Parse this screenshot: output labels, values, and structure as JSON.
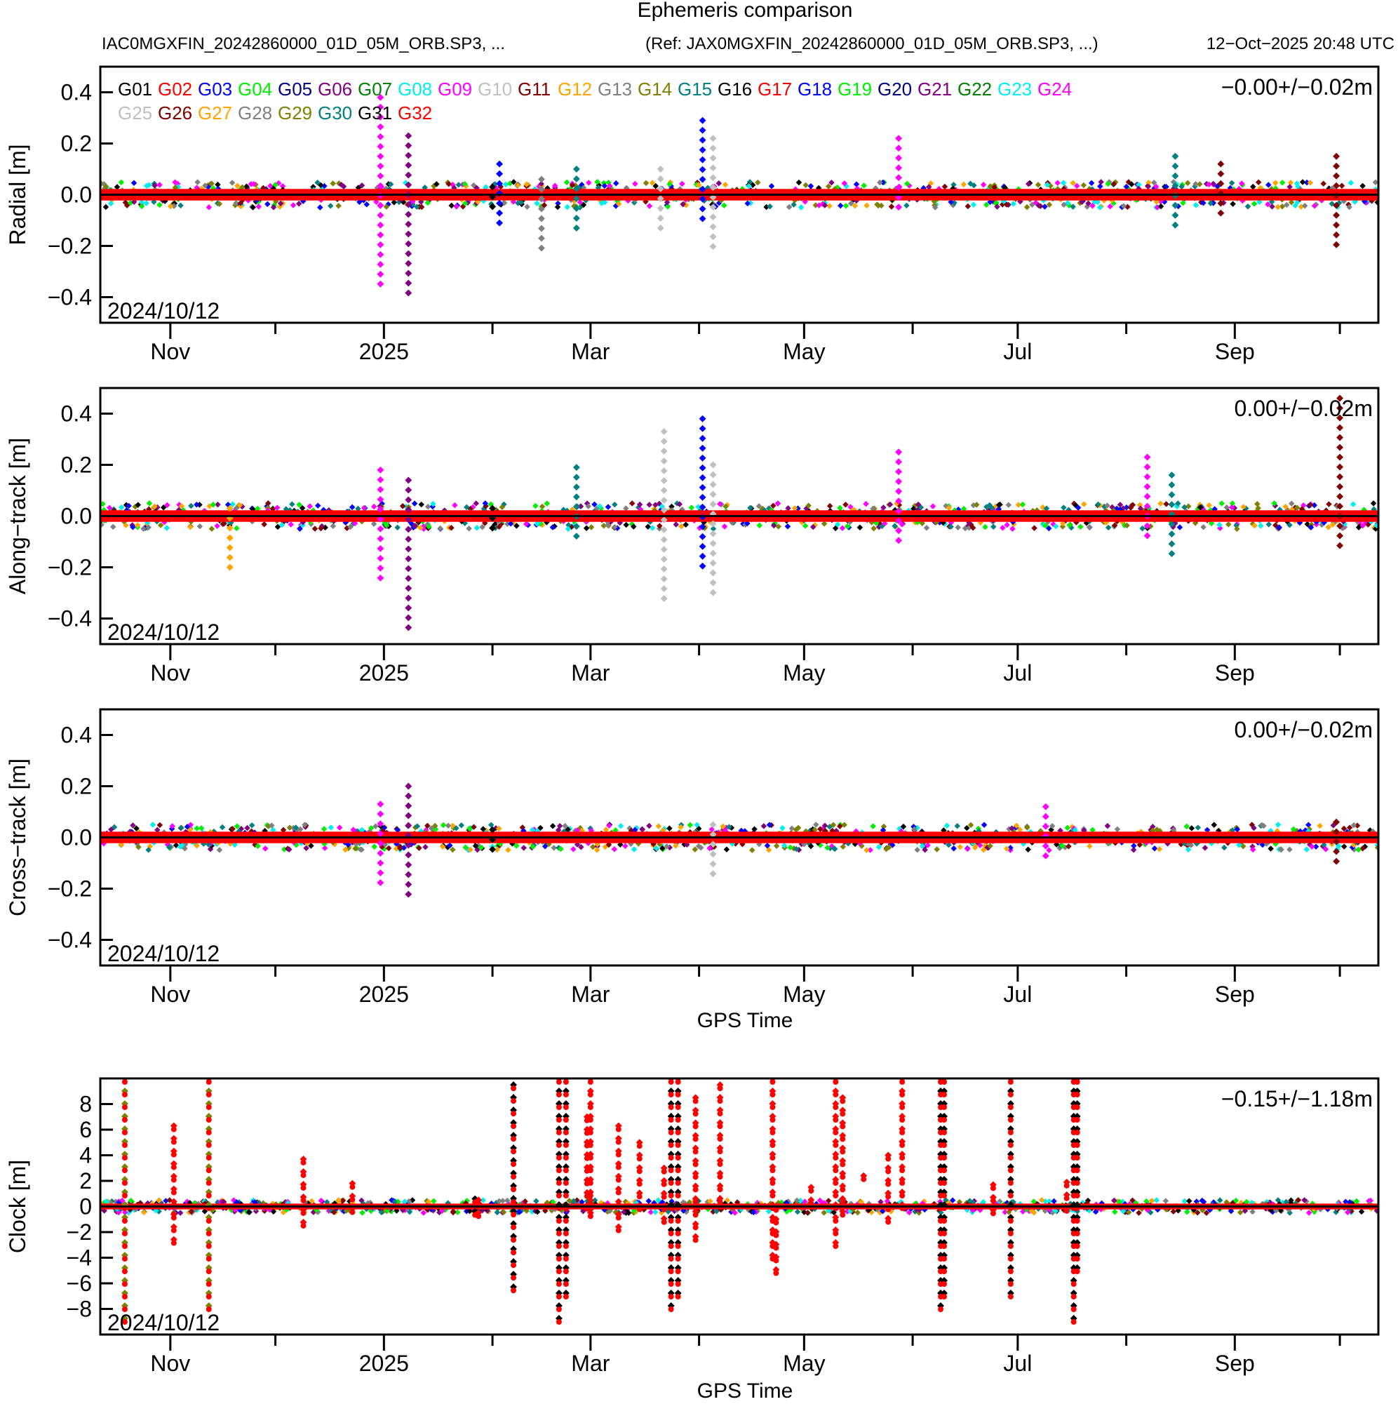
{
  "chart_data": {
    "type": "scatter",
    "title": "Ephemeris comparison",
    "subtitle_left": "IAC0MGXFIN_20242860000_01D_05M_ORB.SP3, ...",
    "subtitle_ref": "(Ref: JAX0MGXFIN_20242860000_01D_05M_ORB.SP3, ...)",
    "subtitle_time": "12−Oct−2025 20:48 UTC",
    "x_range_days": [
      0,
      365
    ],
    "x_start_date": "2024/10/12",
    "x_ticks": [
      {
        "label": "Nov",
        "day": 20
      },
      {
        "label": "",
        "day": 50
      },
      {
        "label": "2025",
        "day": 81
      },
      {
        "label": "",
        "day": 112
      },
      {
        "label": "Mar",
        "day": 140
      },
      {
        "label": "",
        "day": 171
      },
      {
        "label": "May",
        "day": 201
      },
      {
        "label": "",
        "day": 232
      },
      {
        "label": "Jul",
        "day": 262
      },
      {
        "label": "",
        "day": 293
      },
      {
        "label": "Sep",
        "day": 324
      },
      {
        "label": "",
        "day": 354
      }
    ],
    "xlabel": "GPS Time",
    "legend": {
      "placement": "top-left",
      "entries": [
        {
          "name": "G01",
          "color": "#000000"
        },
        {
          "name": "G02",
          "color": "#ff0000"
        },
        {
          "name": "G03",
          "color": "#0000ff"
        },
        {
          "name": "G04",
          "color": "#00ee00"
        },
        {
          "name": "G05",
          "color": "#000080"
        },
        {
          "name": "G06",
          "color": "#800080"
        },
        {
          "name": "G07",
          "color": "#008000"
        },
        {
          "name": "G08",
          "color": "#00eeee"
        },
        {
          "name": "G09",
          "color": "#ff00ff"
        },
        {
          "name": "G10",
          "color": "#c0c0c0"
        },
        {
          "name": "G11",
          "color": "#800000"
        },
        {
          "name": "G12",
          "color": "#ffa500"
        },
        {
          "name": "G13",
          "color": "#808080"
        },
        {
          "name": "G14",
          "color": "#808000"
        },
        {
          "name": "G15",
          "color": "#008080"
        },
        {
          "name": "G16",
          "color": "#000000"
        },
        {
          "name": "G17",
          "color": "#ff0000"
        },
        {
          "name": "G18",
          "color": "#0000ff"
        },
        {
          "name": "G19",
          "color": "#00ee00"
        },
        {
          "name": "G20",
          "color": "#000080"
        },
        {
          "name": "G21",
          "color": "#800080"
        },
        {
          "name": "G22",
          "color": "#008000"
        },
        {
          "name": "G23",
          "color": "#00eeee"
        },
        {
          "name": "G24",
          "color": "#ff00ff"
        },
        {
          "name": "G25",
          "color": "#c0c0c0"
        },
        {
          "name": "G26",
          "color": "#800000"
        },
        {
          "name": "G27",
          "color": "#ffa500"
        },
        {
          "name": "G28",
          "color": "#808080"
        },
        {
          "name": "G29",
          "color": "#808000"
        },
        {
          "name": "G30",
          "color": "#008080"
        },
        {
          "name": "G31",
          "color": "#000000"
        },
        {
          "name": "G32",
          "color": "#ff0000"
        }
      ]
    },
    "panels": [
      {
        "id": "radial",
        "ylabel": "Radial [m]",
        "ylim": [
          -0.5,
          0.5
        ],
        "yticks": [
          "0.4",
          "0.2",
          "0.0",
          "−0.2",
          "−0.4"
        ],
        "ytick_values": [
          0.4,
          0.2,
          0.0,
          -0.2,
          -0.4
        ],
        "stats": "−0.00+/−0.02m",
        "band": 0.05,
        "spikes": [
          {
            "day": 80,
            "min": -0.37,
            "max": 0.38,
            "color": "#ff00ff"
          },
          {
            "day": 88,
            "min": -0.4,
            "max": 0.23,
            "color": "#800080"
          },
          {
            "day": 112,
            "min": -0.05,
            "max": 0.03,
            "color": "#000000"
          },
          {
            "day": 114,
            "min": -0.14,
            "max": 0.12,
            "color": "#0000ff"
          },
          {
            "day": 126,
            "min": -0.22,
            "max": 0.06,
            "color": "#808080"
          },
          {
            "day": 136,
            "min": -0.16,
            "max": 0.1,
            "color": "#008080"
          },
          {
            "day": 160,
            "min": -0.14,
            "max": 0.1,
            "color": "#c0c0c0"
          },
          {
            "day": 172,
            "min": -0.1,
            "max": 0.29,
            "color": "#0000ff"
          },
          {
            "day": 175,
            "min": -0.23,
            "max": 0.22,
            "color": "#c0c0c0"
          },
          {
            "day": 228,
            "min": -0.08,
            "max": 0.22,
            "color": "#ff00ff"
          },
          {
            "day": 307,
            "min": -0.12,
            "max": 0.15,
            "color": "#008080"
          },
          {
            "day": 320,
            "min": -0.1,
            "max": 0.12,
            "color": "#800000"
          },
          {
            "day": 353,
            "min": -0.2,
            "max": 0.15,
            "color": "#800000"
          }
        ]
      },
      {
        "id": "along-track",
        "ylabel": "Along−track [m]",
        "ylim": [
          -0.5,
          0.5
        ],
        "yticks": [
          "0.4",
          "0.2",
          "0.0",
          "−0.2",
          "−0.4"
        ],
        "ytick_values": [
          0.4,
          0.2,
          0.0,
          -0.2,
          -0.4
        ],
        "stats": "0.00+/−0.02m",
        "band": 0.05,
        "spikes": [
          {
            "day": 37,
            "min": -0.22,
            "max": 0.03,
            "color": "#ffa500"
          },
          {
            "day": 80,
            "min": -0.26,
            "max": 0.18,
            "color": "#ff00ff"
          },
          {
            "day": 88,
            "min": -0.46,
            "max": 0.14,
            "color": "#800080"
          },
          {
            "day": 112,
            "min": -0.05,
            "max": 0.03,
            "color": "#000000"
          },
          {
            "day": 136,
            "min": -0.08,
            "max": 0.19,
            "color": "#008080"
          },
          {
            "day": 161,
            "min": -0.35,
            "max": 0.33,
            "color": "#c0c0c0"
          },
          {
            "day": 172,
            "min": -0.22,
            "max": 0.38,
            "color": "#0000ff"
          },
          {
            "day": 175,
            "min": -0.31,
            "max": 0.2,
            "color": "#c0c0c0"
          },
          {
            "day": 228,
            "min": -0.12,
            "max": 0.25,
            "color": "#ff00ff"
          },
          {
            "day": 299,
            "min": -0.1,
            "max": 0.23,
            "color": "#ff00ff"
          },
          {
            "day": 306,
            "min": -0.15,
            "max": 0.16,
            "color": "#008080"
          },
          {
            "day": 354,
            "min": -0.14,
            "max": 0.46,
            "color": "#800000"
          }
        ]
      },
      {
        "id": "cross-track",
        "ylabel": "Cross−track [m]",
        "ylim": [
          -0.5,
          0.5
        ],
        "yticks": [
          "0.4",
          "0.2",
          "0.0",
          "−0.2",
          "−0.4"
        ],
        "ytick_values": [
          0.4,
          0.2,
          0.0,
          -0.2,
          -0.4
        ],
        "stats": "0.00+/−0.02m",
        "band": 0.05,
        "spikes": [
          {
            "day": 80,
            "min": -0.19,
            "max": 0.13,
            "color": "#ff00ff"
          },
          {
            "day": 88,
            "min": -0.23,
            "max": 0.2,
            "color": "#800080"
          },
          {
            "day": 112,
            "min": -0.05,
            "max": 0.03,
            "color": "#000000"
          },
          {
            "day": 175,
            "min": -0.16,
            "max": 0.05,
            "color": "#c0c0c0"
          },
          {
            "day": 270,
            "min": -0.08,
            "max": 0.12,
            "color": "#ff00ff"
          },
          {
            "day": 353,
            "min": -0.12,
            "max": 0.06,
            "color": "#800000"
          }
        ]
      },
      {
        "id": "clock",
        "ylabel": "Clock [m]",
        "ylim": [
          -10,
          10
        ],
        "yticks": [
          "8",
          "6",
          "4",
          "2",
          "0",
          "−2",
          "−4",
          "−6",
          "−8"
        ],
        "ytick_values": [
          8,
          6,
          4,
          2,
          0,
          -2,
          -4,
          -6,
          -8
        ],
        "stats": "−0.15+/−1.18m",
        "band": 0.5,
        "spikes": [
          {
            "day": 7,
            "min": -9.5,
            "max": 10,
            "color": "#808000"
          },
          {
            "day": 21,
            "min": -3,
            "max": 6.3,
            "color": "#ff0000"
          },
          {
            "day": 31,
            "min": -7.8,
            "max": 10,
            "color": "#808000"
          },
          {
            "day": 58,
            "min": -1.8,
            "max": 3.7,
            "color": "#ff0000"
          },
          {
            "day": 72,
            "min": -1,
            "max": 1.8,
            "color": "#ff0000"
          },
          {
            "day": 107,
            "min": -1,
            "max": 0.6,
            "color": "#000000"
          },
          {
            "day": 108,
            "min": -1.2,
            "max": 0.5,
            "color": "#ff0000"
          },
          {
            "day": 118,
            "min": -7,
            "max": 9.5,
            "color": "#000000"
          },
          {
            "day": 131,
            "min": -9.7,
            "max": 10,
            "color": "#000000"
          },
          {
            "day": 133,
            "min": -7,
            "max": 10,
            "color": "#000000"
          },
          {
            "day": 140,
            "min": -1,
            "max": 0.5,
            "color": "#ff0000"
          },
          {
            "day": 140,
            "min": 0,
            "max": 10,
            "color": "#ff0000"
          },
          {
            "day": 139,
            "min": -0.5,
            "max": 7,
            "color": "#ff0000"
          },
          {
            "day": 148,
            "min": -2,
            "max": 6.3,
            "color": "#ff0000"
          },
          {
            "day": 154,
            "min": -0.5,
            "max": 5,
            "color": "#ff0000"
          },
          {
            "day": 161,
            "min": -1.5,
            "max": 3,
            "color": "#ff0000"
          },
          {
            "day": 163,
            "min": -8,
            "max": 10,
            "color": "#000000"
          },
          {
            "day": 165,
            "min": -7,
            "max": 10,
            "color": "#000000"
          },
          {
            "day": 170,
            "min": -3,
            "max": 8.5,
            "color": "#ff0000"
          },
          {
            "day": 177,
            "min": 0,
            "max": 9.5,
            "color": "#ff0000"
          },
          {
            "day": 192,
            "min": -4.5,
            "max": 10,
            "color": "#ff0000"
          },
          {
            "day": 193,
            "min": -5.3,
            "max": 0,
            "color": "#ff0000"
          },
          {
            "day": 203,
            "min": -0.3,
            "max": 1.5,
            "color": "#ff0000"
          },
          {
            "day": 210,
            "min": -3.5,
            "max": 10,
            "color": "#ff0000"
          },
          {
            "day": 212,
            "min": -0.5,
            "max": 8.5,
            "color": "#ff0000"
          },
          {
            "day": 218,
            "min": 1.5,
            "max": 2.4,
            "color": "#ff0000"
          },
          {
            "day": 225,
            "min": -1.5,
            "max": 4,
            "color": "#ff0000"
          },
          {
            "day": 229,
            "min": -0.5,
            "max": 10,
            "color": "#ff0000"
          },
          {
            "day": 240,
            "min": -8.5,
            "max": 10,
            "color": "#000000"
          },
          {
            "day": 241,
            "min": -7,
            "max": 10,
            "color": "#000000"
          },
          {
            "day": 255,
            "min": -0.3,
            "max": 1.7,
            "color": "#ff0000"
          },
          {
            "day": 260,
            "min": -7,
            "max": 10,
            "color": "#000000"
          },
          {
            "day": 276,
            "min": -0.3,
            "max": 1.9,
            "color": "#ff0000"
          },
          {
            "day": 278,
            "min": -9,
            "max": 10,
            "color": "#000000"
          },
          {
            "day": 279,
            "min": -5,
            "max": 10,
            "color": "#000000"
          }
        ]
      }
    ],
    "corner_date_label": "2024/10/12"
  }
}
